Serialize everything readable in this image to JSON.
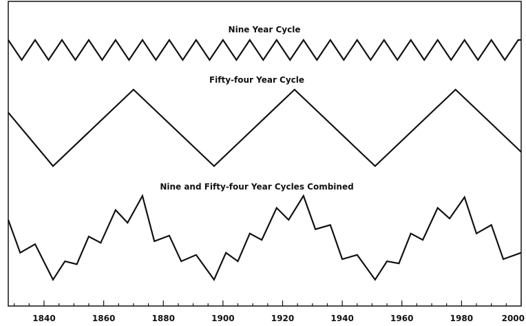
{
  "chart_data": [
    {
      "type": "line",
      "title": "Nine Year Cycle",
      "x": [
        1828,
        1832.5,
        1837,
        1841.5,
        1846,
        1850.5,
        1855,
        1859.5,
        1864,
        1868.5,
        1873,
        1877.5,
        1882,
        1886.5,
        1891,
        1895.5,
        1900,
        1904.5,
        1909,
        1913.5,
        1918,
        1922.5,
        1927,
        1931.5,
        1936,
        1940.5,
        1945,
        1949.5,
        1954,
        1958.5,
        1963,
        1967.5,
        1972,
        1976.5,
        1981,
        1985.5,
        1990,
        1994.5,
        1999,
        2000
      ],
      "values": [
        1,
        -1,
        1,
        -1,
        1,
        -1,
        1,
        -1,
        1,
        -1,
        1,
        -1,
        1,
        -1,
        1,
        -1,
        1,
        -1,
        1,
        -1,
        1,
        -1,
        1,
        -1,
        1,
        -1,
        1,
        -1,
        1,
        -1,
        1,
        -1,
        1,
        -1,
        1,
        -1,
        1,
        -1,
        1,
        1
      ],
      "ylim": [
        -1,
        1
      ]
    },
    {
      "type": "line",
      "title": "Fifty-four Year Cycle",
      "x": [
        1828,
        1843,
        1870,
        1897,
        1924,
        1951,
        1978,
        2000
      ],
      "values": [
        0.4,
        -1,
        1,
        -1,
        1,
        -1,
        1,
        -0.63
      ],
      "ylim": [
        -1,
        1
      ]
    },
    {
      "type": "line",
      "title": "Nine and Fifty-four Year Cycles Combined",
      "x": [
        1828,
        1832,
        1837,
        1843,
        1847,
        1851,
        1855,
        1859,
        1864,
        1868,
        1873,
        1877,
        1882,
        1886,
        1891,
        1897,
        1901,
        1905,
        1909,
        1913,
        1918,
        1922,
        1927,
        1931,
        1936,
        1940,
        1945,
        1951,
        1955,
        1959,
        1963,
        1967,
        1972,
        1976,
        1981,
        1985,
        1990,
        1994,
        2000
      ],
      "values": [
        0.42,
        -0.35,
        -0.15,
        -0.98,
        -0.55,
        -0.62,
        0.03,
        -0.12,
        0.65,
        0.35,
        0.98,
        -0.08,
        0.05,
        -0.55,
        -0.4,
        -0.98,
        -0.35,
        -0.55,
        0.1,
        -0.05,
        0.7,
        0.42,
        0.98,
        0.2,
        0.3,
        -0.5,
        -0.4,
        -0.98,
        -0.55,
        -0.6,
        0.1,
        -0.05,
        0.7,
        0.45,
        0.95,
        0.1,
        0.3,
        -0.5,
        -0.35
      ],
      "ylim": [
        -1,
        1
      ]
    }
  ],
  "axis": {
    "xlim": [
      1828,
      2000
    ],
    "ticks": [
      1840,
      1860,
      1880,
      1900,
      1920,
      1940,
      1960,
      1980,
      2000
    ],
    "tick_labels": [
      "1840",
      "1860",
      "1880",
      "1900",
      "1920",
      "1940",
      "1960",
      "1980",
      "2000"
    ]
  }
}
